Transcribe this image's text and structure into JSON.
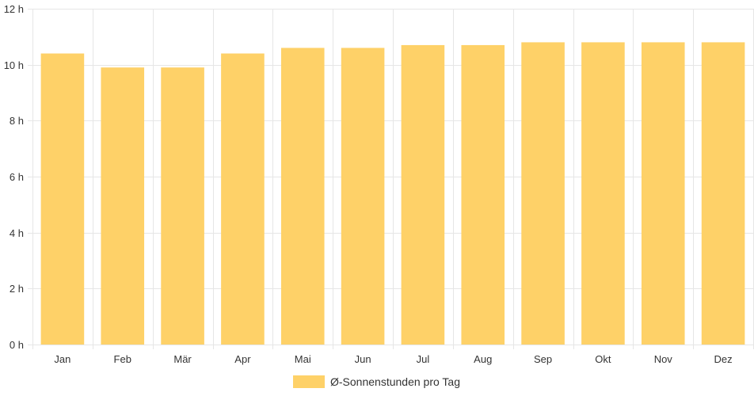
{
  "chart_data": {
    "type": "bar",
    "categories": [
      "Jan",
      "Feb",
      "Mär",
      "Apr",
      "Mai",
      "Jun",
      "Jul",
      "Aug",
      "Sep",
      "Okt",
      "Nov",
      "Dez"
    ],
    "series": [
      {
        "name": "Ø-Sonnenstunden pro Tag",
        "values": [
          10.4,
          9.9,
          9.9,
          10.4,
          10.6,
          10.6,
          10.7,
          10.7,
          10.8,
          10.8,
          10.8,
          10.8
        ],
        "color": "#fed168"
      }
    ],
    "ylim": [
      0,
      12
    ],
    "yticks": [
      0,
      2,
      4,
      6,
      8,
      10,
      12
    ],
    "ytick_suffix": " h",
    "grid": true,
    "grid_color": "#e6e6e6",
    "legend_position": "bottom"
  }
}
